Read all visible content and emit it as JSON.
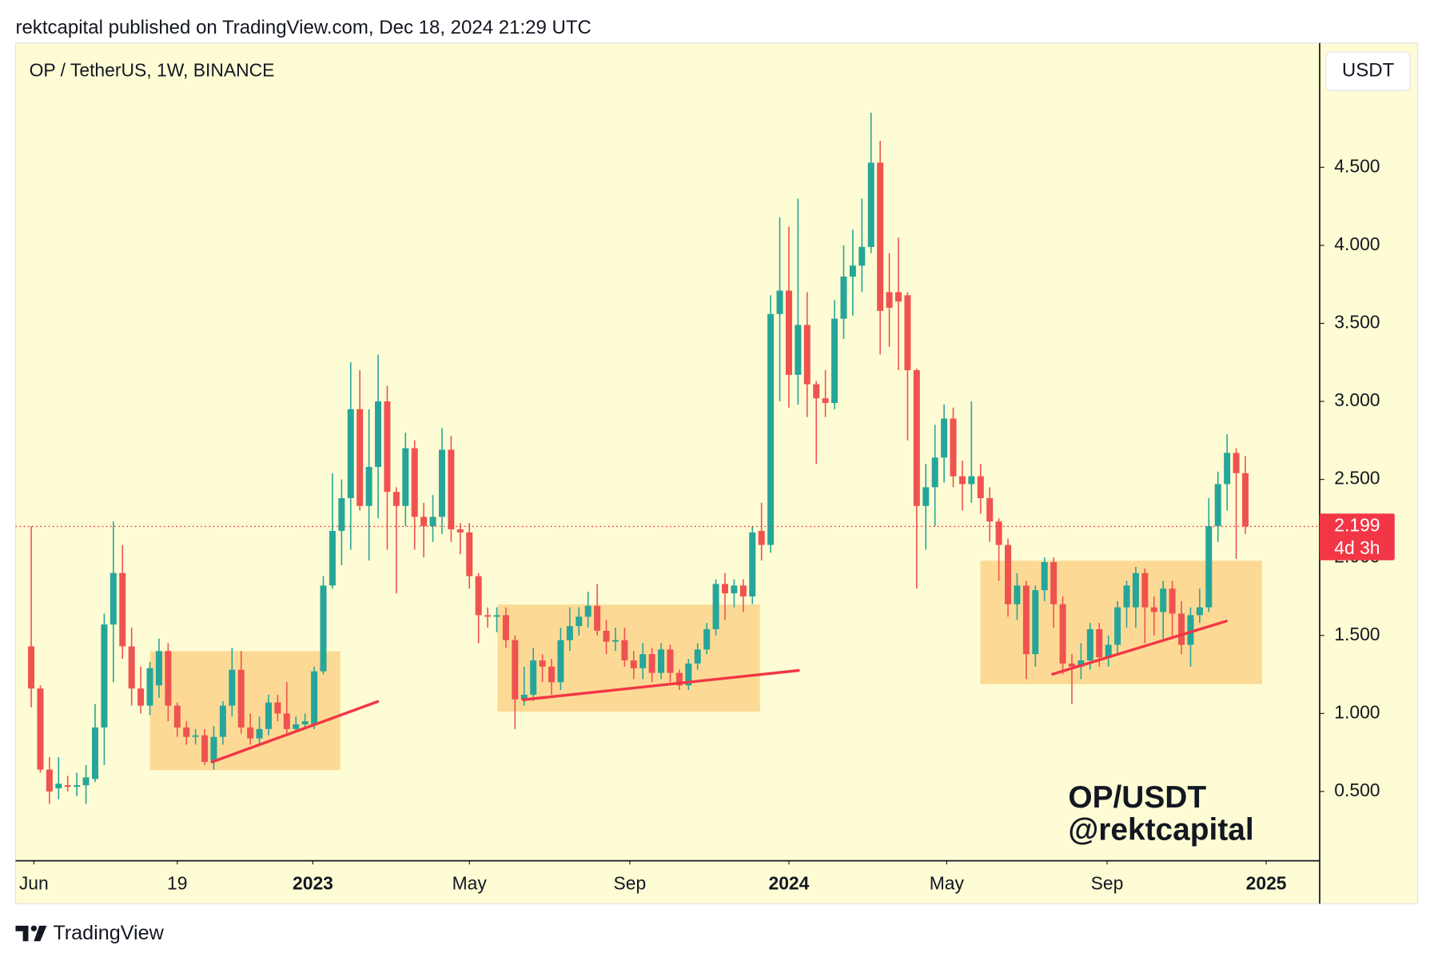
{
  "header": {
    "text": "rektcapital published on TradingView.com, Dec 18, 2024 21:29 UTC"
  },
  "footer": {
    "brand": "TradingView"
  },
  "chart_data": {
    "type": "candlestick",
    "title": "OP / TetherUS, 1W, BINANCE",
    "currency": "USDT",
    "watermark": [
      "OP/USDT",
      "@rektcapital"
    ],
    "up_color": "#26a69a",
    "down_color": "#ef5350",
    "last_price": {
      "value": 2.199,
      "countdown": "4d 3h",
      "color": "#f23645"
    },
    "x": [
      "2022-05-30",
      "2022-06-06",
      "2022-06-13",
      "2022-06-20",
      "2022-06-27",
      "2022-07-04",
      "2022-07-11",
      "2022-07-18",
      "2022-07-25",
      "2022-08-01",
      "2022-08-08",
      "2022-08-15",
      "2022-08-22",
      "2022-08-29",
      "2022-09-05",
      "2022-09-12",
      "2022-09-19",
      "2022-09-26",
      "2022-10-03",
      "2022-10-10",
      "2022-10-17",
      "2022-10-24",
      "2022-10-31",
      "2022-11-07",
      "2022-11-14",
      "2022-11-21",
      "2022-11-28",
      "2022-12-05",
      "2022-12-12",
      "2022-12-19",
      "2022-12-26",
      "2023-01-02",
      "2023-01-09",
      "2023-01-16",
      "2023-01-23",
      "2023-01-30",
      "2023-02-06",
      "2023-02-13",
      "2023-02-20",
      "2023-02-27",
      "2023-03-06",
      "2023-03-13",
      "2023-03-20",
      "2023-03-27",
      "2023-04-03",
      "2023-04-10",
      "2023-04-17",
      "2023-04-24",
      "2023-05-01",
      "2023-05-08",
      "2023-05-15",
      "2023-05-22",
      "2023-05-29",
      "2023-06-05",
      "2023-06-12",
      "2023-06-19",
      "2023-06-26",
      "2023-07-03",
      "2023-07-10",
      "2023-07-17",
      "2023-07-24",
      "2023-07-31",
      "2023-08-07",
      "2023-08-14",
      "2023-08-21",
      "2023-08-28",
      "2023-09-04",
      "2023-09-11",
      "2023-09-18",
      "2023-09-25",
      "2023-10-02",
      "2023-10-09",
      "2023-10-16",
      "2023-10-23",
      "2023-10-30",
      "2023-11-06",
      "2023-11-13",
      "2023-11-20",
      "2023-11-27",
      "2023-12-04",
      "2023-12-11",
      "2023-12-18",
      "2023-12-25",
      "2024-01-01",
      "2024-01-08",
      "2024-01-15",
      "2024-01-22",
      "2024-01-29",
      "2024-02-05",
      "2024-02-12",
      "2024-02-19",
      "2024-02-26",
      "2024-03-04",
      "2024-03-11",
      "2024-03-18",
      "2024-03-25",
      "2024-04-01",
      "2024-04-08",
      "2024-04-15",
      "2024-04-22",
      "2024-04-29",
      "2024-05-06",
      "2024-05-13",
      "2024-05-20",
      "2024-05-27",
      "2024-06-03",
      "2024-06-10",
      "2024-06-17",
      "2024-06-24",
      "2024-07-01",
      "2024-07-08",
      "2024-07-15",
      "2024-07-22",
      "2024-07-29",
      "2024-08-05",
      "2024-08-12",
      "2024-08-19",
      "2024-08-26",
      "2024-09-02",
      "2024-09-09",
      "2024-09-16",
      "2024-09-23",
      "2024-09-30",
      "2024-10-07",
      "2024-10-14",
      "2024-10-21",
      "2024-10-28",
      "2024-11-04",
      "2024-11-11",
      "2024-11-18",
      "2024-11-25",
      "2024-12-02",
      "2024-12-09",
      "2024-12-16"
    ],
    "open": [
      1.43,
      1.16,
      0.64,
      0.52,
      0.54,
      0.53,
      0.54,
      0.58,
      0.91,
      1.57,
      1.9,
      1.43,
      1.16,
      1.05,
      1.18,
      1.4,
      1.05,
      0.91,
      0.85,
      0.86,
      0.69,
      0.85,
      1.05,
      1.28,
      0.91,
      0.84,
      0.9,
      1.07,
      1.0,
      0.9,
      0.93,
      0.93,
      1.27,
      1.82,
      2.17,
      2.38,
      2.95,
      2.33,
      2.58,
      3.0,
      2.42,
      2.33,
      2.7,
      2.26,
      2.2,
      2.26,
      2.69,
      2.18,
      2.16,
      1.88,
      1.63,
      1.62,
      1.63,
      1.47,
      1.09,
      1.12,
      1.34,
      1.3,
      1.2,
      1.47,
      1.56,
      1.62,
      1.69,
      1.53,
      1.46,
      1.47,
      1.34,
      1.29,
      1.38,
      1.26,
      1.41,
      1.26,
      1.18,
      1.32,
      1.41,
      1.54,
      1.83,
      1.77,
      1.82,
      1.75,
      2.17,
      2.08,
      3.56,
      3.71,
      3.17,
      3.49,
      3.11,
      3.02,
      2.99,
      3.53,
      3.8,
      3.87,
      3.99,
      4.53,
      3.7,
      3.7,
      3.68,
      3.2,
      2.33,
      2.45,
      2.64,
      2.89,
      2.52,
      2.47,
      2.52,
      2.38,
      2.23,
      2.08,
      1.7,
      1.82,
      1.38,
      1.79,
      1.97,
      1.7,
      1.32,
      1.3,
      1.34,
      1.54,
      1.36,
      1.44,
      1.68,
      1.68,
      1.9,
      1.68,
      1.65,
      1.8,
      1.64,
      1.44,
      1.63,
      1.68,
      2.2,
      2.47,
      2.67,
      2.54
    ],
    "high": [
      2.2,
      1.18,
      0.72,
      0.72,
      0.6,
      0.62,
      0.67,
      1.06,
      1.64,
      2.23,
      2.08,
      1.55,
      1.3,
      1.33,
      1.48,
      1.45,
      1.07,
      0.95,
      0.9,
      0.9,
      0.92,
      1.08,
      1.42,
      1.4,
      1.0,
      0.98,
      1.12,
      1.12,
      1.2,
      0.98,
      1.0,
      1.3,
      1.88,
      2.54,
      2.5,
      3.25,
      3.2,
      2.95,
      3.3,
      3.1,
      2.45,
      2.8,
      2.75,
      2.35,
      2.4,
      2.83,
      2.78,
      2.22,
      2.22,
      1.9,
      1.68,
      1.68,
      1.68,
      1.5,
      1.3,
      1.42,
      1.38,
      1.35,
      1.55,
      1.68,
      1.68,
      1.78,
      1.83,
      1.6,
      1.55,
      1.55,
      1.4,
      1.45,
      1.42,
      1.45,
      1.44,
      1.28,
      1.35,
      1.45,
      1.58,
      1.86,
      1.9,
      1.86,
      1.86,
      2.2,
      2.35,
      3.68,
      4.18,
      4.12,
      4.3,
      3.7,
      3.13,
      3.2,
      3.65,
      4.0,
      4.1,
      4.3,
      4.85,
      4.67,
      3.95,
      4.05,
      3.7,
      3.21,
      2.6,
      2.85,
      2.98,
      2.96,
      2.62,
      3.0,
      2.6,
      2.45,
      2.25,
      2.12,
      1.9,
      1.85,
      1.82,
      2.0,
      2.0,
      1.75,
      1.38,
      1.45,
      1.58,
      1.58,
      1.5,
      1.72,
      1.85,
      1.94,
      1.93,
      1.75,
      1.85,
      1.85,
      1.72,
      1.68,
      1.8,
      2.38,
      2.55,
      2.79,
      2.7,
      2.65
    ],
    "low": [
      1.04,
      0.62,
      0.42,
      0.45,
      0.5,
      0.47,
      0.42,
      0.56,
      0.67,
      1.2,
      1.35,
      1.05,
      1.0,
      0.99,
      1.1,
      0.95,
      0.85,
      0.8,
      0.8,
      0.67,
      0.64,
      0.8,
      0.98,
      0.87,
      0.8,
      0.8,
      0.86,
      0.95,
      0.86,
      0.88,
      0.9,
      0.9,
      1.25,
      1.8,
      1.95,
      2.05,
      2.3,
      1.98,
      2.25,
      2.05,
      1.77,
      2.2,
      2.05,
      2.0,
      2.1,
      2.15,
      2.1,
      2.02,
      1.8,
      1.45,
      1.55,
      1.52,
      1.42,
      0.9,
      1.05,
      1.08,
      1.2,
      1.12,
      1.15,
      1.4,
      1.5,
      1.55,
      1.5,
      1.38,
      1.4,
      1.3,
      1.22,
      1.22,
      1.2,
      1.22,
      1.2,
      1.15,
      1.15,
      1.28,
      1.38,
      1.5,
      1.6,
      1.68,
      1.65,
      1.7,
      1.98,
      2.03,
      3.0,
      2.96,
      2.98,
      2.9,
      2.6,
      2.9,
      2.95,
      3.4,
      3.55,
      3.7,
      3.95,
      3.3,
      3.35,
      3.2,
      2.75,
      1.8,
      2.05,
      2.2,
      2.48,
      2.45,
      2.3,
      2.35,
      2.28,
      2.1,
      1.85,
      1.62,
      1.6,
      1.22,
      1.3,
      1.72,
      1.55,
      1.25,
      1.06,
      1.22,
      1.28,
      1.3,
      1.3,
      1.38,
      1.55,
      1.55,
      1.45,
      1.5,
      1.48,
      1.48,
      1.38,
      1.3,
      1.58,
      1.65,
      2.1,
      2.3,
      1.99,
      2.15
    ],
    "close": [
      1.16,
      0.64,
      0.5,
      0.55,
      0.53,
      0.54,
      0.59,
      0.91,
      1.57,
      1.9,
      1.43,
      1.16,
      1.05,
      1.29,
      1.4,
      1.05,
      0.91,
      0.85,
      0.86,
      0.69,
      0.85,
      1.05,
      1.28,
      0.91,
      0.84,
      0.9,
      1.07,
      1.0,
      0.9,
      0.93,
      0.95,
      1.27,
      1.82,
      2.17,
      2.38,
      2.95,
      2.33,
      2.58,
      3.0,
      2.42,
      2.33,
      2.7,
      2.26,
      2.2,
      2.26,
      2.69,
      2.18,
      2.16,
      1.88,
      1.63,
      1.62,
      1.63,
      1.47,
      1.09,
      1.12,
      1.34,
      1.3,
      1.2,
      1.47,
      1.56,
      1.62,
      1.69,
      1.53,
      1.46,
      1.47,
      1.34,
      1.29,
      1.38,
      1.26,
      1.41,
      1.26,
      1.18,
      1.32,
      1.41,
      1.54,
      1.83,
      1.77,
      1.82,
      1.75,
      2.16,
      2.08,
      3.56,
      3.71,
      3.17,
      3.49,
      3.11,
      3.02,
      2.99,
      3.53,
      3.8,
      3.87,
      3.99,
      4.53,
      3.58,
      3.6,
      3.64,
      3.2,
      2.33,
      2.45,
      2.64,
      2.89,
      2.52,
      2.47,
      2.52,
      2.38,
      2.23,
      2.08,
      1.7,
      1.82,
      1.38,
      1.79,
      1.97,
      1.7,
      1.32,
      1.3,
      1.34,
      1.54,
      1.36,
      1.44,
      1.68,
      1.82,
      1.9,
      1.68,
      1.65,
      1.8,
      1.64,
      1.44,
      1.63,
      1.68,
      2.2,
      2.47,
      2.67,
      2.54,
      2.199
    ],
    "xlim": [
      "2022-05-18",
      "2025-02-11"
    ],
    "xticks": [
      {
        "value": "2022-06-01",
        "label": "Jun"
      },
      {
        "value": "2022-09-19",
        "label": "19"
      },
      {
        "value": "2023-01-01",
        "label": "2023"
      },
      {
        "value": "2023-05-01",
        "label": "May"
      },
      {
        "value": "2023-09-01",
        "label": "Sep"
      },
      {
        "value": "2024-01-01",
        "label": "2024"
      },
      {
        "value": "2024-05-01",
        "label": "May"
      },
      {
        "value": "2024-09-01",
        "label": "Sep"
      },
      {
        "value": "2025-01-01",
        "label": "2025"
      }
    ],
    "ylim": [
      0.056,
      5.297
    ],
    "yticks": [
      {
        "value": 0.5,
        "label": "0.500"
      },
      {
        "value": 1,
        "label": "1.000"
      },
      {
        "value": 1.5,
        "label": "1.500"
      },
      {
        "value": 2,
        "label": "2.000"
      },
      {
        "value": 2.5,
        "label": "2.500"
      },
      {
        "value": 3,
        "label": "3.000"
      },
      {
        "value": 3.5,
        "label": "3.500"
      },
      {
        "value": 4,
        "label": "4.000"
      },
      {
        "value": 4.5,
        "label": "4.500"
      }
    ]
  }
}
